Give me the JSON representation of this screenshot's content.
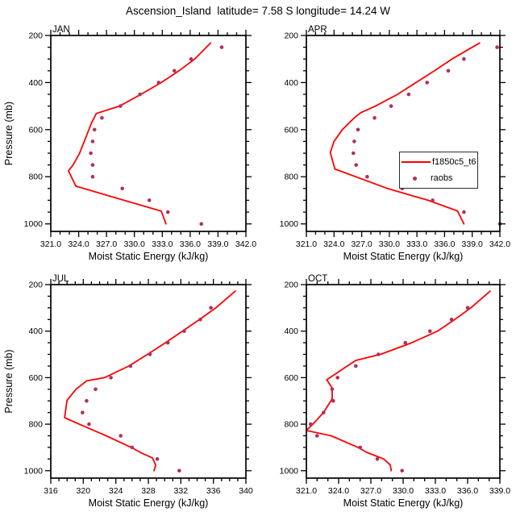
{
  "title": "Ascension_Island  latitude= 7.58 S longitude= 14.24 W",
  "colors": {
    "model_line": "#ff0000",
    "obs_marker": "#b03060",
    "axis": "#000000",
    "background": "#ffffff"
  },
  "legend": {
    "position": "inside APR panel, right-center",
    "entries": [
      {
        "label": "f1850c5_t6",
        "marker": "line"
      },
      {
        "label": "raobs",
        "marker": "dot"
      }
    ]
  },
  "chart_data": [
    {
      "type": "line",
      "title": "JAN",
      "xlabel": "Moist Static Energy (kJ/kg)",
      "ylabel": "Pressure (mb)",
      "xlim": [
        321,
        342
      ],
      "ylim": [
        200,
        1000
      ],
      "y_inverted": true,
      "x_tick_labels": [
        "321.0",
        "324.0",
        "327.0",
        "330.0",
        "333.0",
        "336.0",
        "339.0",
        "342.0"
      ],
      "x_minor_step": 1,
      "y_tick_labels": [
        "200",
        "400",
        "600",
        "800",
        "1000"
      ],
      "y_minor_step": 50,
      "series": [
        {
          "name": "f1850c5_t6",
          "type": "line",
          "points": [
            [
              338.2,
              232
            ],
            [
              336.5,
              300
            ],
            [
              334.8,
              350
            ],
            [
              332.9,
              400
            ],
            [
              330.7,
              450
            ],
            [
              328.4,
              500
            ],
            [
              325.9,
              531
            ],
            [
              325.4,
              570
            ],
            [
              325.1,
              600
            ],
            [
              324.6,
              650
            ],
            [
              324.1,
              700
            ],
            [
              323.4,
              750
            ],
            [
              322.9,
              775
            ],
            [
              323.7,
              840
            ],
            [
              332.9,
              946
            ],
            [
              333.4,
              1000
            ]
          ]
        },
        {
          "name": "raobs",
          "type": "scatter",
          "points": [
            [
              339.4,
              250
            ],
            [
              336.1,
              300
            ],
            [
              334.3,
              350
            ],
            [
              332.6,
              400
            ],
            [
              330.6,
              450
            ],
            [
              328.5,
              500
            ],
            [
              326.5,
              550
            ],
            [
              325.7,
              600
            ],
            [
              325.5,
              650
            ],
            [
              325.3,
              700
            ],
            [
              325.5,
              750
            ],
            [
              325.5,
              800
            ],
            [
              328.7,
              850
            ],
            [
              331.6,
              900
            ],
            [
              333.6,
              950
            ],
            [
              337.2,
              1000
            ]
          ]
        }
      ]
    },
    {
      "type": "line",
      "title": "APR",
      "xlabel": "Moist Static Energy (kJ/kg)",
      "ylabel": "Pressure (mb)",
      "xlim": [
        321,
        342
      ],
      "ylim": [
        200,
        1000
      ],
      "y_inverted": true,
      "x_tick_labels": [
        "321.0",
        "324.0",
        "327.0",
        "330.0",
        "333.0",
        "336.0",
        "339.0",
        "342.0"
      ],
      "x_minor_step": 1,
      "y_tick_labels": [
        "200",
        "400",
        "600",
        "800",
        "1000"
      ],
      "y_minor_step": 50,
      "series": [
        {
          "name": "f1850c5_t6",
          "type": "line",
          "points": [
            [
              339.8,
              232
            ],
            [
              336.8,
              300
            ],
            [
              334.9,
              350
            ],
            [
              332.9,
              400
            ],
            [
              330.9,
              450
            ],
            [
              328.5,
              500
            ],
            [
              326.9,
              528
            ],
            [
              326.2,
              550
            ],
            [
              324.9,
              600
            ],
            [
              324.0,
              650
            ],
            [
              323.6,
              697
            ],
            [
              324.1,
              767
            ],
            [
              329.8,
              850
            ],
            [
              334.2,
              900
            ],
            [
              337.4,
              945
            ],
            [
              338.1,
              1000
            ]
          ]
        },
        {
          "name": "raobs",
          "type": "scatter",
          "points": [
            [
              341.7,
              250
            ],
            [
              338.1,
              300
            ],
            [
              336.4,
              350
            ],
            [
              334.1,
              400
            ],
            [
              332.1,
              450
            ],
            [
              330.2,
              500
            ],
            [
              328.4,
              550
            ],
            [
              326.6,
              600
            ],
            [
              326.2,
              650
            ],
            [
              326.1,
              700
            ],
            [
              326.4,
              750
            ],
            [
              327.6,
              800
            ],
            [
              331.4,
              850
            ],
            [
              334.7,
              900
            ],
            [
              338.1,
              950
            ],
            [
              342.0,
              1000
            ]
          ]
        }
      ]
    },
    {
      "type": "line",
      "title": "JUL",
      "xlabel": "Moist Static Energy (kJ/kg)",
      "ylabel": "Pressure (mb)",
      "xlim": [
        316,
        340
      ],
      "ylim": [
        200,
        1000
      ],
      "y_inverted": true,
      "x_tick_labels": [
        "316",
        "320",
        "324",
        "328",
        "332",
        "336",
        "340"
      ],
      "x_minor_step": 1,
      "y_tick_labels": [
        "200",
        "400",
        "600",
        "800",
        "1000"
      ],
      "y_minor_step": 50,
      "series": [
        {
          "name": "f1850c5_t6",
          "type": "line",
          "points": [
            [
              338.7,
              228
            ],
            [
              336.3,
              300
            ],
            [
              334.3,
              350
            ],
            [
              332.2,
              400
            ],
            [
              330.1,
              450
            ],
            [
              327.9,
              500
            ],
            [
              325.6,
              550
            ],
            [
              322.6,
              600
            ],
            [
              320.4,
              614
            ],
            [
              319.1,
              650
            ],
            [
              318.0,
              697
            ],
            [
              317.7,
              772
            ],
            [
              319.5,
              800
            ],
            [
              322.8,
              850
            ],
            [
              325.9,
              900
            ],
            [
              327.1,
              923
            ],
            [
              328.5,
              945
            ],
            [
              328.9,
              975
            ],
            [
              328.7,
              1000
            ]
          ]
        },
        {
          "name": "raobs",
          "type": "scatter",
          "points": [
            [
              335.7,
              300
            ],
            [
              334.4,
              350
            ],
            [
              332.4,
              400
            ],
            [
              330.4,
              450
            ],
            [
              328.2,
              500
            ],
            [
              325.8,
              550
            ],
            [
              323.4,
              600
            ],
            [
              321.5,
              650
            ],
            [
              320.4,
              700
            ],
            [
              319.9,
              750
            ],
            [
              320.7,
              800
            ],
            [
              324.6,
              850
            ],
            [
              326.0,
              900
            ],
            [
              329.1,
              950
            ],
            [
              331.8,
              1000
            ]
          ]
        }
      ]
    },
    {
      "type": "line",
      "title": "OCT",
      "xlabel": "Moist Static Energy (kJ/kg)",
      "ylabel": "Pressure (mb)",
      "xlim": [
        321,
        339
      ],
      "ylim": [
        200,
        1000
      ],
      "y_inverted": true,
      "x_tick_labels": [
        "321.0",
        "324.0",
        "327.0",
        "330.0",
        "333.0",
        "336.0",
        "339.0"
      ],
      "x_minor_step": 1,
      "y_tick_labels": [
        "200",
        "400",
        "600",
        "800",
        "1000"
      ],
      "y_minor_step": 50,
      "series": [
        {
          "name": "f1850c5_t6",
          "type": "line",
          "points": [
            [
              338.1,
              228
            ],
            [
              336.3,
              300
            ],
            [
              334.8,
              350
            ],
            [
              333.2,
              400
            ],
            [
              330.8,
              450
            ],
            [
              327.9,
              500
            ],
            [
              325.6,
              526
            ],
            [
              324.8,
              550
            ],
            [
              323.2,
              600
            ],
            [
              322.9,
              609
            ],
            [
              323.4,
              645
            ],
            [
              323.4,
              691
            ],
            [
              322.6,
              750
            ],
            [
              321.6,
              800
            ],
            [
              321.0,
              827
            ],
            [
              323.3,
              850
            ],
            [
              325.8,
              900
            ],
            [
              326.6,
              921
            ],
            [
              328.2,
              950
            ],
            [
              328.8,
              975
            ],
            [
              328.9,
              1000
            ]
          ]
        },
        {
          "name": "raobs",
          "type": "scatter",
          "points": [
            [
              336.0,
              300
            ],
            [
              334.5,
              350
            ],
            [
              332.5,
              400
            ],
            [
              330.2,
              450
            ],
            [
              327.7,
              500
            ],
            [
              325.6,
              550
            ],
            [
              323.9,
              600
            ],
            [
              323.4,
              650
            ],
            [
              323.5,
              700
            ],
            [
              322.6,
              750
            ],
            [
              321.4,
              800
            ],
            [
              322.0,
              850
            ],
            [
              326.0,
              900
            ],
            [
              327.6,
              950
            ],
            [
              329.9,
              1000
            ]
          ]
        }
      ]
    }
  ]
}
